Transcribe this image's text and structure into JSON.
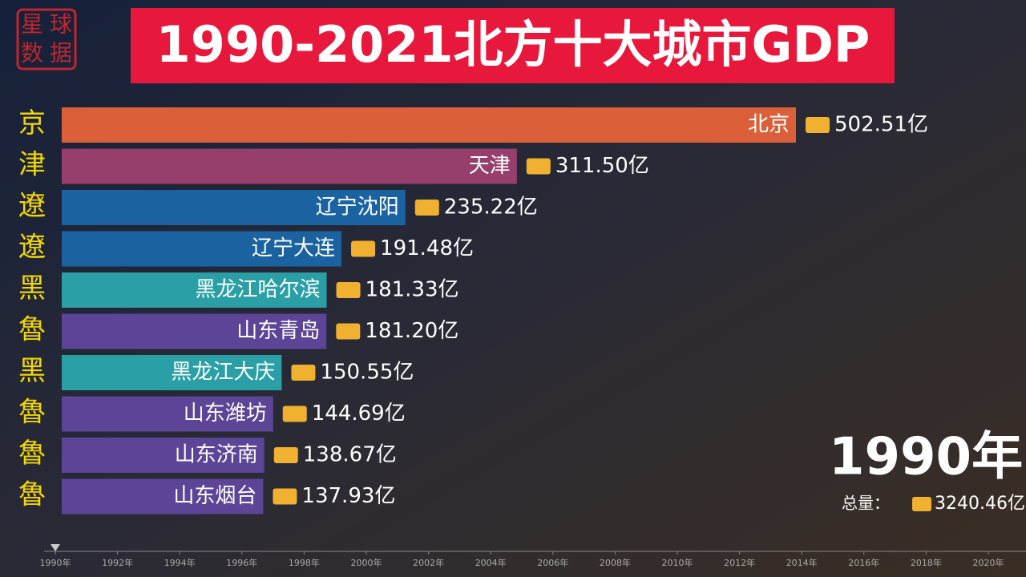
{
  "chart_data": {
    "type": "bar",
    "orientation": "horizontal",
    "title": "1990-2021北方十大城市GDP",
    "logo": [
      "星",
      "球",
      "数",
      "据"
    ],
    "categories": [
      "北京",
      "天津",
      "辽宁沈阳",
      "辽宁大连",
      "黑龙江哈尔滨",
      "山东青岛",
      "黑龙江大庆",
      "山东潍坊",
      "山东济南",
      "山东烟台"
    ],
    "provinces": [
      "京",
      "津",
      "遼",
      "遼",
      "黑",
      "魯",
      "黑",
      "魯",
      "魯",
      "魯"
    ],
    "values": [
      502.51,
      311.5,
      235.22,
      191.48,
      181.33,
      181.2,
      150.55,
      144.69,
      138.67,
      137.93
    ],
    "value_labels": [
      "502.51亿",
      "311.50亿",
      "235.22亿",
      "191.48亿",
      "181.33亿",
      "181.20亿",
      "150.55亿",
      "144.69亿",
      "138.67亿",
      "137.93亿"
    ],
    "colors": [
      "#db6039",
      "#963f6c",
      "#1b63a0",
      "#1b63a0",
      "#2a9fa6",
      "#5c4496",
      "#2a9fa6",
      "#5c4496",
      "#5c4496",
      "#5c4496"
    ],
    "xlim": [
      0,
      502.51
    ],
    "year_label": "1990年",
    "total_label": "总量：",
    "total": "3240.46亿",
    "timeline_lim": [
      1990,
      2020
    ],
    "timeline_current": 1990,
    "timeline_ticks": [
      {
        "value": 1990,
        "label": "1990年"
      },
      {
        "value": 1992,
        "label": "1992年"
      },
      {
        "value": 1994,
        "label": "1994年"
      },
      {
        "value": 1996,
        "label": "1996年"
      },
      {
        "value": 1998,
        "label": "1998年"
      },
      {
        "value": 2000,
        "label": "2000年"
      },
      {
        "value": 2002,
        "label": "2002年"
      },
      {
        "value": 2004,
        "label": "2004年"
      },
      {
        "value": 2006,
        "label": "2006年"
      },
      {
        "value": 2008,
        "label": "2008年"
      },
      {
        "value": 2010,
        "label": "2010年"
      },
      {
        "value": 2012,
        "label": "2012年"
      },
      {
        "value": 2014,
        "label": "2014年"
      },
      {
        "value": 2016,
        "label": "2016年"
      },
      {
        "value": 2018,
        "label": "2018年"
      },
      {
        "value": 2020,
        "label": "2020年"
      }
    ]
  }
}
